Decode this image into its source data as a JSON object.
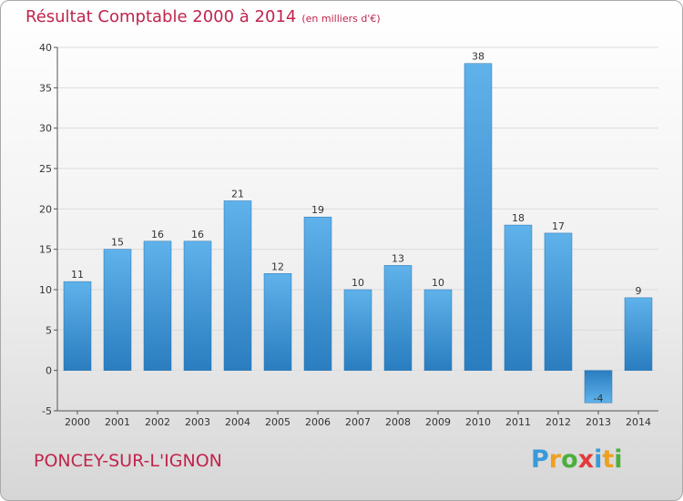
{
  "header": {
    "title": "Résultat Comptable 2000 à 2014",
    "unit": "(en milliers d'€)"
  },
  "footer": {
    "town": "PONCEY-SUR-L'IGNON",
    "logo_letters": [
      "P",
      "r",
      "o",
      "x",
      "i",
      "t",
      "i"
    ],
    "logo_colors": [
      "#3a9ad9",
      "#f0a020",
      "#4caf3c",
      "#e23b3b",
      "#3a9ad9",
      "#f0a020",
      "#4caf3c"
    ]
  },
  "colors": {
    "title": "#c0244c",
    "bar_light": "#5aaee8",
    "bar_dark": "#2a7ec0"
  },
  "chart_data": {
    "type": "bar",
    "title": "Résultat Comptable 2000 à 2014",
    "subtitle": "(en milliers d'€)",
    "categories": [
      "2000",
      "2001",
      "2002",
      "2003",
      "2004",
      "2005",
      "2006",
      "2007",
      "2008",
      "2009",
      "2010",
      "2011",
      "2012",
      "2013",
      "2014"
    ],
    "values": [
      11,
      15,
      16,
      16,
      21,
      12,
      19,
      10,
      13,
      10,
      38,
      18,
      17,
      -4,
      9
    ],
    "ylim": [
      -5,
      40
    ],
    "yticks": [
      -5,
      0,
      5,
      10,
      15,
      20,
      25,
      30,
      35,
      40
    ],
    "grid": true
  }
}
